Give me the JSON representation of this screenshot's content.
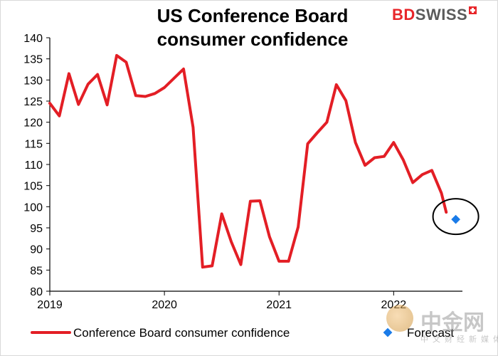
{
  "brand": {
    "part1": "BD",
    "part2": "SWISS"
  },
  "watermark": {
    "main": "中金网",
    "sub": "中文财经新媒体"
  },
  "colors": {
    "series": "#e31e25",
    "forecast": "#1a7be8",
    "axis": "#000000",
    "ellipse": "#000000"
  },
  "chart_data": {
    "type": "line",
    "title_lines": [
      "US Conference Board",
      "consumer confidence"
    ],
    "ylim": [
      80,
      140
    ],
    "yticks": [
      80,
      85,
      90,
      95,
      100,
      105,
      110,
      115,
      120,
      125,
      130,
      135,
      140
    ],
    "xlim": [
      2019.0,
      2022.6
    ],
    "xticks": [
      {
        "value": 2019.0,
        "label": "2019"
      },
      {
        "value": 2020.0,
        "label": "2020"
      },
      {
        "value": 2021.0,
        "label": "2021"
      },
      {
        "value": 2022.0,
        "label": "2022"
      }
    ],
    "series": [
      {
        "name": "Conference Board consumer confidence",
        "x": [
          2019.0,
          2019.0833,
          2019.1667,
          2019.25,
          2019.3333,
          2019.4167,
          2019.5,
          2019.5833,
          2019.6667,
          2019.75,
          2019.8333,
          2019.9167,
          2020.0,
          2020.0833,
          2020.1667,
          2020.25,
          2020.3333,
          2020.4167,
          2020.5,
          2020.5833,
          2020.6667,
          2020.75,
          2020.8333,
          2020.9167,
          2021.0,
          2021.0833,
          2021.1667,
          2021.25,
          2021.3333,
          2021.4167,
          2021.5,
          2021.5833,
          2021.6667,
          2021.75,
          2021.8333,
          2021.9167,
          2022.0,
          2022.0833,
          2022.1667,
          2022.25,
          2022.3333,
          2022.4167
        ],
        "values": [
          124.5,
          121.5,
          131.5,
          124.2,
          129.0,
          131.3,
          124.1,
          135.8,
          134.2,
          126.3,
          126.1,
          126.8,
          128.2,
          130.4,
          132.6,
          118.8,
          85.7,
          86.0,
          98.3,
          91.7,
          86.3,
          101.3,
          101.4,
          92.9,
          87.1,
          87.1,
          95.2,
          114.9,
          117.5,
          120.0,
          128.9,
          125.1,
          115.2,
          109.8,
          111.6,
          111.9,
          115.2,
          111.1,
          105.7,
          107.6,
          108.6,
          103.2
        ]
      },
      {
        "name": "Forecast",
        "x": [
          2022.5417
        ],
        "values": [
          97.0
        ]
      }
    ],
    "extra_points": [
      {
        "x": 2022.4583,
        "value": 98.7
      }
    ],
    "annotation": {
      "type": "ellipse",
      "center_x": 2022.5417,
      "center_y": 97.0
    },
    "legend": [
      "Conference Board consumer confidence",
      "Forecast"
    ],
    "legend_position": "bottom"
  }
}
